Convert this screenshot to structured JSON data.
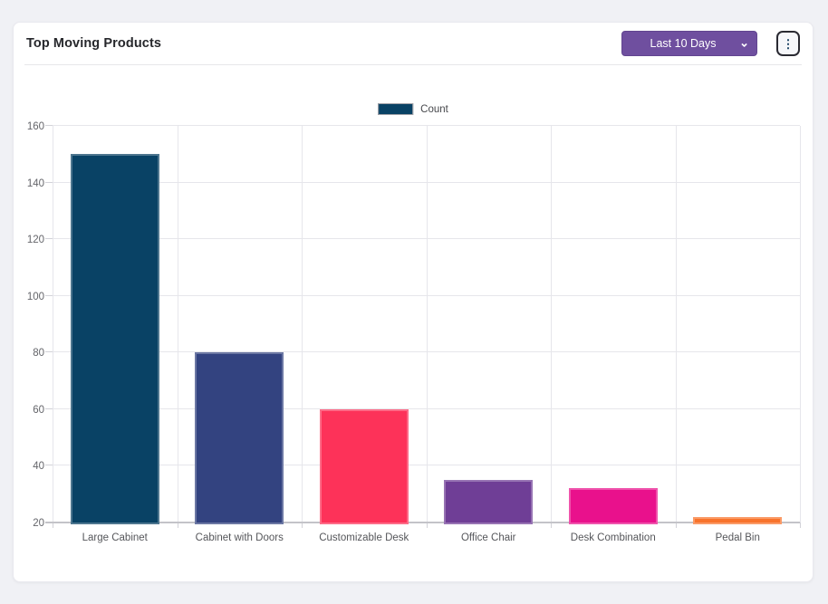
{
  "header": {
    "title": "Top Moving Products",
    "range_select": {
      "value": "Last 10 Days",
      "chevron_icon": "chevron-down-icon",
      "bg_color": "#6f4f9f"
    },
    "menu_button": {
      "icon": "kebab-vertical-icon",
      "glyph": "⋮"
    }
  },
  "colors": {
    "page_bg": "#f0f1f5",
    "card_bg": "#ffffff",
    "grid": "#e6e6eb",
    "axis": "#c3c3c8",
    "tick_text": "#64656a"
  },
  "chart_data": {
    "type": "bar",
    "title": "Top Moving Products",
    "legend": [
      {
        "label": "Count",
        "color": "#094265"
      }
    ],
    "legend_position": "top-center",
    "categories": [
      "Large Cabinet",
      "Cabinet with Doors",
      "Customizable Desk",
      "Office Chair",
      "Desk Combination",
      "Pedal Bin"
    ],
    "series": [
      {
        "name": "Count",
        "values": [
          150,
          80,
          60,
          35,
          32,
          22
        ]
      }
    ],
    "bar_colors": [
      "#094265",
      "#334380",
      "#fd3259",
      "#6f3e96",
      "#e9118c",
      "#f8732c"
    ],
    "xlabel": "",
    "ylabel": "",
    "ylim": [
      20,
      160
    ],
    "ytick_step": 20,
    "yticks": [
      20,
      40,
      60,
      80,
      100,
      120,
      140,
      160
    ],
    "grid": true
  }
}
